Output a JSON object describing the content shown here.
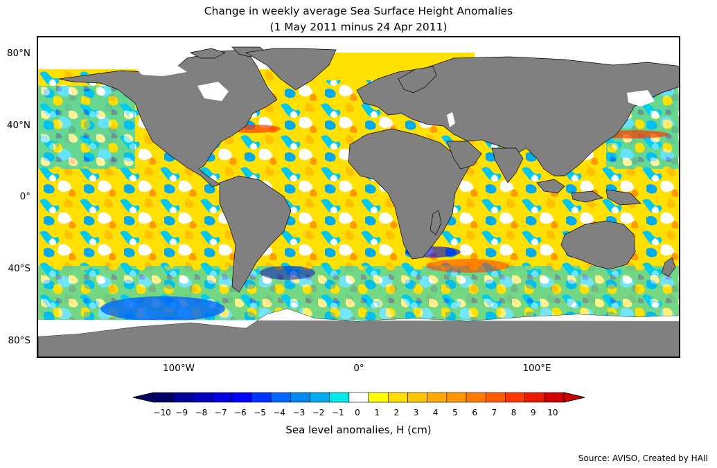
{
  "title": {
    "line1": "Change in weekly average Sea Surface Height Anomalies",
    "line2": "(1 May 2011 minus 24 Apr 2011)"
  },
  "axes": {
    "lat_labels": [
      "80°N",
      "40°N",
      "0°",
      "40°S",
      "80°S"
    ],
    "lon_labels": [
      "100°W",
      "0°",
      "100°E"
    ]
  },
  "colorbar": {
    "label": "Sea level anomalies, H (cm)",
    "ticks": [
      "−10",
      "−9",
      "−8",
      "−7",
      "−6",
      "−5",
      "−4",
      "−3",
      "−2",
      "−1",
      "0",
      "1",
      "2",
      "3",
      "4",
      "5",
      "6",
      "7",
      "8",
      "9",
      "10"
    ],
    "colors": [
      "#000066",
      "#000099",
      "#0000bb",
      "#0000dd",
      "#0000ff",
      "#0033ff",
      "#0066ff",
      "#0088ee",
      "#00aaee",
      "#00e8e8",
      "#ffffff",
      "#ffff00",
      "#ffdd00",
      "#ffc400",
      "#ffaa00",
      "#ff9500",
      "#ff7a00",
      "#ff5c00",
      "#ff3a00",
      "#e81a00",
      "#cc0000"
    ],
    "extend_low_color": "#000066",
    "extend_high_color": "#cc0000"
  },
  "land_color": "#808080",
  "source": "Source: AVISO, Created by HAII"
}
